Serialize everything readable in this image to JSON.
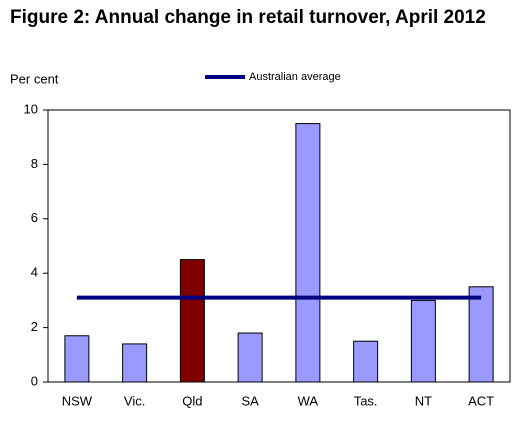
{
  "chart_data": {
    "type": "bar",
    "title": "Figure 2: Annual change in retail turnover, April 2012",
    "y_label": "Per cent",
    "categories": [
      "NSW",
      "Vic.",
      "Qld",
      "SA",
      "WA",
      "Tas.",
      "NT",
      "ACT"
    ],
    "values": [
      1.7,
      1.4,
      4.5,
      1.8,
      9.5,
      1.5,
      3.0,
      3.5
    ],
    "colors": [
      "#9999ff",
      "#9999ff",
      "#800000",
      "#9999ff",
      "#9999ff",
      "#9999ff",
      "#9999ff",
      "#9999ff"
    ],
    "reference_line": {
      "name": "Australian average",
      "value": 3.1,
      "color": "#000080"
    },
    "ylim": [
      0,
      10
    ],
    "yticks": [
      0,
      2,
      4,
      6,
      8,
      10
    ],
    "grid": false
  }
}
